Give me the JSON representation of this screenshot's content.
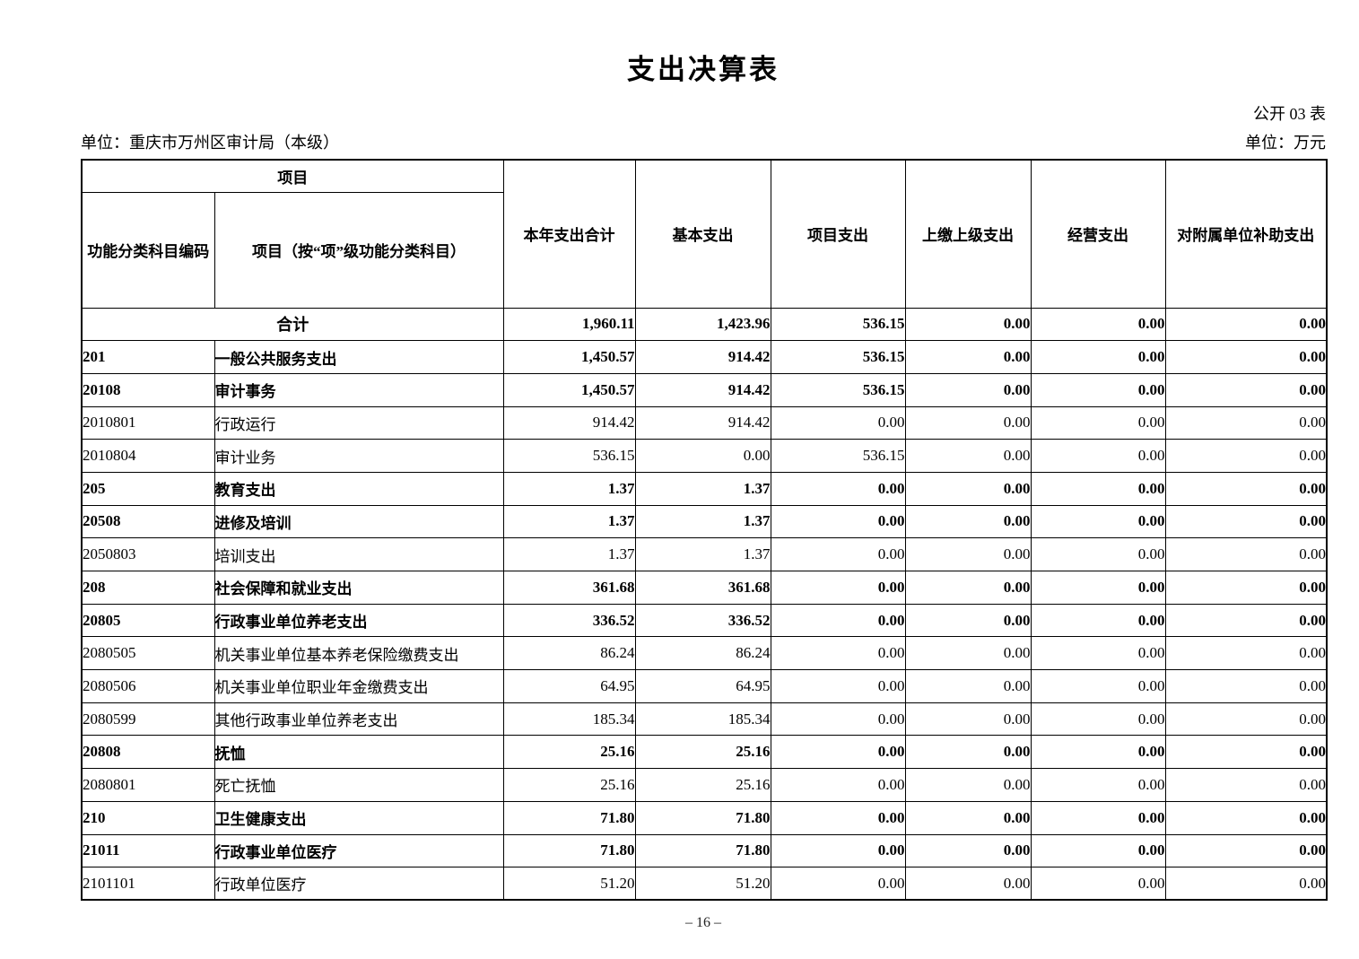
{
  "page": {
    "title": "支出决算表",
    "table_code": "公开 03 表",
    "unit_left": "单位：重庆市万州区审计局（本级）",
    "unit_right": "单位：万元",
    "page_number": "– 16 –"
  },
  "table": {
    "header": {
      "project_group": "项目",
      "col_code": "功能分类科目编码",
      "col_name": "项目（按“项”级功能分类科目）",
      "col_total": "本年支出合计",
      "col_basic": "基本支出",
      "col_project": "项目支出",
      "col_upper": "上缴上级支出",
      "col_operating": "经营支出",
      "col_subsidy": "对附属单位补助支出"
    },
    "rows": [
      {
        "code": "",
        "name": "合计",
        "merged": true,
        "bold": true,
        "values": [
          "1,960.11",
          "1,423.96",
          "536.15",
          "0.00",
          "0.00",
          "0.00"
        ]
      },
      {
        "code": "201",
        "name": "一般公共服务支出",
        "merged": false,
        "bold": true,
        "values": [
          "1,450.57",
          "914.42",
          "536.15",
          "0.00",
          "0.00",
          "0.00"
        ]
      },
      {
        "code": "20108",
        "name": "审计事务",
        "merged": false,
        "bold": true,
        "values": [
          "1,450.57",
          "914.42",
          "536.15",
          "0.00",
          "0.00",
          "0.00"
        ]
      },
      {
        "code": "2010801",
        "name": "行政运行",
        "merged": false,
        "bold": false,
        "values": [
          "914.42",
          "914.42",
          "0.00",
          "0.00",
          "0.00",
          "0.00"
        ]
      },
      {
        "code": "2010804",
        "name": "审计业务",
        "merged": false,
        "bold": false,
        "values": [
          "536.15",
          "0.00",
          "536.15",
          "0.00",
          "0.00",
          "0.00"
        ]
      },
      {
        "code": "205",
        "name": "教育支出",
        "merged": false,
        "bold": true,
        "values": [
          "1.37",
          "1.37",
          "0.00",
          "0.00",
          "0.00",
          "0.00"
        ]
      },
      {
        "code": "20508",
        "name": "进修及培训",
        "merged": false,
        "bold": true,
        "values": [
          "1.37",
          "1.37",
          "0.00",
          "0.00",
          "0.00",
          "0.00"
        ]
      },
      {
        "code": "2050803",
        "name": "培训支出",
        "merged": false,
        "bold": false,
        "values": [
          "1.37",
          "1.37",
          "0.00",
          "0.00",
          "0.00",
          "0.00"
        ]
      },
      {
        "code": "208",
        "name": "社会保障和就业支出",
        "merged": false,
        "bold": true,
        "values": [
          "361.68",
          "361.68",
          "0.00",
          "0.00",
          "0.00",
          "0.00"
        ]
      },
      {
        "code": "20805",
        "name": "行政事业单位养老支出",
        "merged": false,
        "bold": true,
        "values": [
          "336.52",
          "336.52",
          "0.00",
          "0.00",
          "0.00",
          "0.00"
        ]
      },
      {
        "code": "2080505",
        "name": "机关事业单位基本养老保险缴费支出",
        "merged": false,
        "bold": false,
        "values": [
          "86.24",
          "86.24",
          "0.00",
          "0.00",
          "0.00",
          "0.00"
        ]
      },
      {
        "code": "2080506",
        "name": "机关事业单位职业年金缴费支出",
        "merged": false,
        "bold": false,
        "values": [
          "64.95",
          "64.95",
          "0.00",
          "0.00",
          "0.00",
          "0.00"
        ]
      },
      {
        "code": "2080599",
        "name": "其他行政事业单位养老支出",
        "merged": false,
        "bold": false,
        "values": [
          "185.34",
          "185.34",
          "0.00",
          "0.00",
          "0.00",
          "0.00"
        ]
      },
      {
        "code": "20808",
        "name": "抚恤",
        "merged": false,
        "bold": true,
        "values": [
          "25.16",
          "25.16",
          "0.00",
          "0.00",
          "0.00",
          "0.00"
        ]
      },
      {
        "code": "2080801",
        "name": "死亡抚恤",
        "merged": false,
        "bold": false,
        "values": [
          "25.16",
          "25.16",
          "0.00",
          "0.00",
          "0.00",
          "0.00"
        ]
      },
      {
        "code": "210",
        "name": "卫生健康支出",
        "merged": false,
        "bold": true,
        "values": [
          "71.80",
          "71.80",
          "0.00",
          "0.00",
          "0.00",
          "0.00"
        ]
      },
      {
        "code": "21011",
        "name": "行政事业单位医疗",
        "merged": false,
        "bold": true,
        "values": [
          "71.80",
          "71.80",
          "0.00",
          "0.00",
          "0.00",
          "0.00"
        ]
      },
      {
        "code": "2101101",
        "name": "行政单位医疗",
        "merged": false,
        "bold": false,
        "values": [
          "51.20",
          "51.20",
          "0.00",
          "0.00",
          "0.00",
          "0.00"
        ]
      }
    ]
  }
}
